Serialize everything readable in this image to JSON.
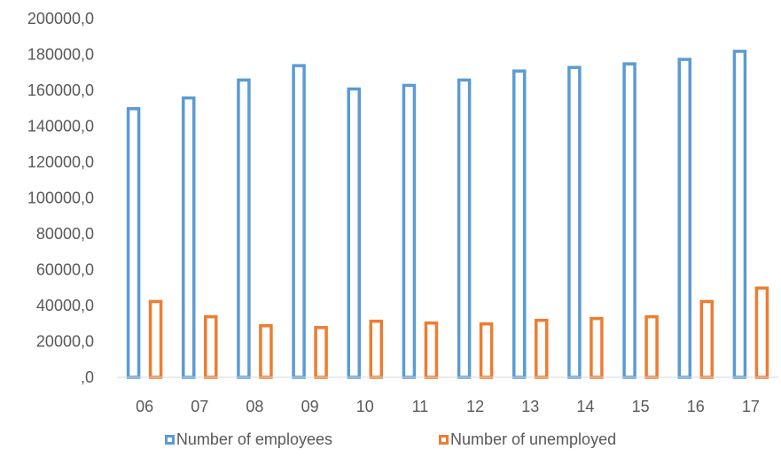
{
  "chart_data": {
    "type": "bar",
    "title": "",
    "xlabel": "",
    "ylabel": "",
    "ylim": [
      0,
      200000
    ],
    "y_ticks": [
      0,
      20000,
      40000,
      60000,
      80000,
      100000,
      120000,
      140000,
      160000,
      180000,
      200000
    ],
    "y_tick_labels": [
      ",0",
      "20000,0",
      "40000,0",
      "60000,0",
      "80000,0",
      "100000,0",
      "120000,0",
      "140000,0",
      "160000,0",
      "180000,0",
      "200000,0"
    ],
    "categories": [
      "06",
      "07",
      "08",
      "09",
      "10",
      "11",
      "12",
      "13",
      "14",
      "15",
      "16",
      "17"
    ],
    "series": [
      {
        "name": "Number of employees",
        "color": "#5B9BD5",
        "values": [
          150500,
          156500,
          166500,
          174500,
          161500,
          163500,
          166500,
          171500,
          173500,
          175500,
          178000,
          182500
        ]
      },
      {
        "name": "Number of unemployed",
        "color": "#ED7D31",
        "values": [
          43000,
          34500,
          29500,
          28500,
          32000,
          31000,
          30500,
          32500,
          33500,
          34500,
          43000,
          50500
        ]
      }
    ],
    "grid": false,
    "legend_position": "bottom"
  }
}
